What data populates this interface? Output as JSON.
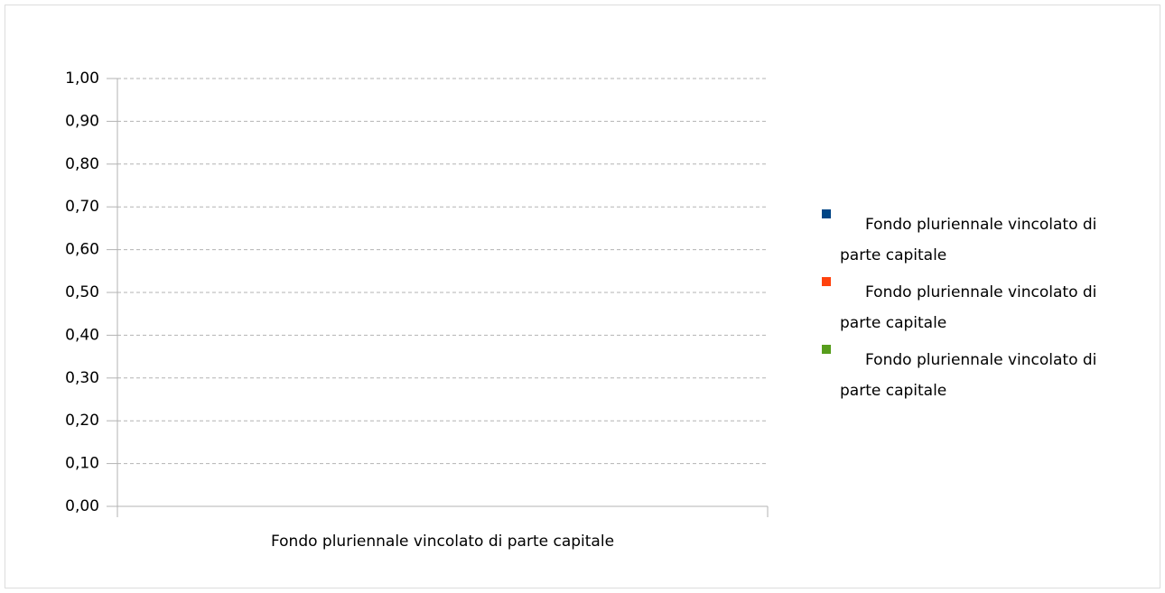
{
  "chart_data": {
    "type": "bar",
    "categories": [
      "Fondo pluriennale vincolato di parte capitale"
    ],
    "series": [
      {
        "name": "Fondo pluriennale vincolato di parte capitale",
        "color": "#004586",
        "values": [
          0
        ]
      },
      {
        "name": "Fondo pluriennale vincolato di parte capitale",
        "color": "#ff420e",
        "values": [
          0
        ]
      },
      {
        "name": "Fondo pluriennale vincolato di parte capitale",
        "color": "#579d1c",
        "values": [
          0
        ]
      }
    ],
    "ylim": [
      0,
      1
    ],
    "yticks": [
      {
        "value": 0,
        "label": "0,00"
      },
      {
        "value": 0.1,
        "label": "0,10"
      },
      {
        "value": 0.2,
        "label": "0,20"
      },
      {
        "value": 0.3,
        "label": "0,30"
      },
      {
        "value": 0.4,
        "label": "0,40"
      },
      {
        "value": 0.5,
        "label": "0,50"
      },
      {
        "value": 0.6,
        "label": "0,60"
      },
      {
        "value": 0.7,
        "label": "0,70"
      },
      {
        "value": 0.8,
        "label": "0,80"
      },
      {
        "value": 0.9,
        "label": "0,90"
      },
      {
        "value": 1,
        "label": "1,00"
      }
    ],
    "grid": true,
    "legend": "right"
  }
}
